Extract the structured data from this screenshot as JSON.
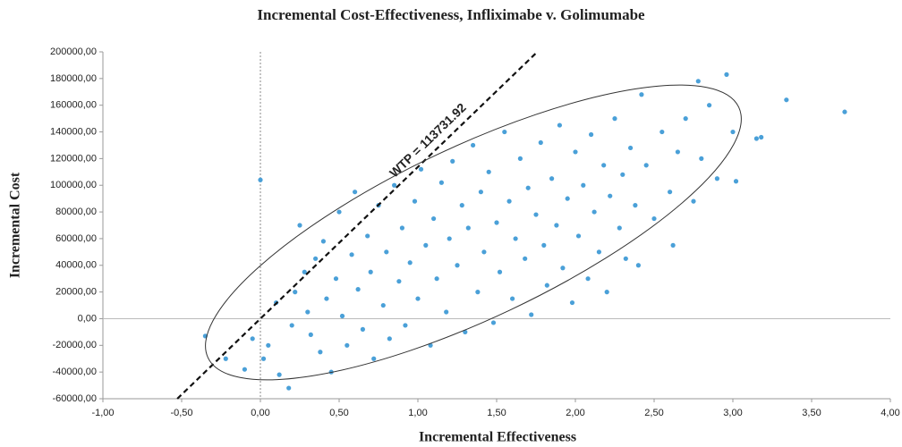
{
  "chart_data": {
    "type": "scatter",
    "title": "Incremental Cost-Effectiveness, Infliximabe v. Golimumabe",
    "x_label": "Incremental Effectiveness",
    "y_label": "Incremental Cost",
    "annotation": "WTP = 113731.92",
    "wtp": 113731.92,
    "color": "#4aa0d8",
    "xlim": [
      -1,
      4
    ],
    "ylim": [
      -60000,
      200000
    ],
    "xticks": [
      {
        "value": -1,
        "label": "-1,00"
      },
      {
        "value": -0.5,
        "label": "-0,50"
      },
      {
        "value": 0,
        "label": "0,00"
      },
      {
        "value": 0.5,
        "label": "0,50"
      },
      {
        "value": 1,
        "label": "1,00"
      },
      {
        "value": 1.5,
        "label": "1,50"
      },
      {
        "value": 2,
        "label": "2,00"
      },
      {
        "value": 2.5,
        "label": "2,50"
      },
      {
        "value": 3,
        "label": "3,00"
      },
      {
        "value": 3.5,
        "label": "3,50"
      },
      {
        "value": 4,
        "label": "4,00"
      }
    ],
    "yticks": [
      {
        "value": -60000,
        "label": "-60000,00"
      },
      {
        "value": -40000,
        "label": "-40000,00"
      },
      {
        "value": -20000,
        "label": "-20000,00"
      },
      {
        "value": 0,
        "label": "0,00"
      },
      {
        "value": 20000,
        "label": "20000,00"
      },
      {
        "value": 40000,
        "label": "40000,00"
      },
      {
        "value": 60000,
        "label": "60000,00"
      },
      {
        "value": 80000,
        "label": "80000,00"
      },
      {
        "value": 100000,
        "label": "100000,00"
      },
      {
        "value": 120000,
        "label": "120000,00"
      },
      {
        "value": 140000,
        "label": "140000,00"
      },
      {
        "value": 160000,
        "label": "160000,00"
      },
      {
        "value": 180000,
        "label": "180000,00"
      },
      {
        "value": 200000,
        "label": "200000,00"
      }
    ],
    "x": [
      -0.35,
      -0.22,
      -0.1,
      -0.05,
      0.0,
      0.02,
      0.05,
      0.1,
      0.12,
      0.18,
      0.2,
      0.22,
      0.25,
      0.28,
      0.3,
      0.32,
      0.35,
      0.38,
      0.4,
      0.42,
      0.45,
      0.48,
      0.5,
      0.52,
      0.55,
      0.58,
      0.6,
      0.62,
      0.65,
      0.68,
      0.7,
      0.72,
      0.75,
      0.78,
      0.8,
      0.82,
      0.85,
      0.88,
      0.9,
      0.92,
      0.95,
      0.98,
      1.0,
      1.02,
      1.05,
      1.08,
      1.1,
      1.12,
      1.15,
      1.18,
      1.2,
      1.22,
      1.25,
      1.28,
      1.3,
      1.32,
      1.35,
      1.38,
      1.4,
      1.42,
      1.45,
      1.48,
      1.5,
      1.52,
      1.55,
      1.58,
      1.6,
      1.62,
      1.65,
      1.68,
      1.7,
      1.72,
      1.75,
      1.78,
      1.8,
      1.82,
      1.85,
      1.88,
      1.9,
      1.92,
      1.95,
      1.98,
      2.0,
      2.02,
      2.05,
      2.08,
      2.1,
      2.12,
      2.15,
      2.18,
      2.2,
      2.22,
      2.25,
      2.28,
      2.3,
      2.32,
      2.35,
      2.38,
      2.4,
      2.42,
      2.45,
      2.5,
      2.55,
      2.6,
      2.62,
      2.65,
      2.7,
      2.75,
      2.78,
      2.8,
      2.85,
      2.9,
      2.96,
      3.0,
      3.02,
      3.15,
      3.18,
      3.34,
      3.71
    ],
    "values": [
      -13000,
      -30000,
      -38000,
      -15000,
      104000,
      -30000,
      -20000,
      12000,
      -42000,
      -52000,
      -5000,
      20000,
      70000,
      35000,
      5000,
      -12000,
      45000,
      -25000,
      58000,
      15000,
      -40000,
      30000,
      80000,
      2000,
      -20000,
      48000,
      95000,
      22000,
      -8000,
      62000,
      35000,
      -30000,
      85000,
      10000,
      50000,
      -15000,
      100000,
      28000,
      68000,
      -5000,
      42000,
      88000,
      15000,
      112000,
      55000,
      -20000,
      75000,
      30000,
      102000,
      5000,
      60000,
      118000,
      40000,
      85000,
      -10000,
      68000,
      130000,
      20000,
      95000,
      50000,
      110000,
      -3000,
      72000,
      35000,
      140000,
      88000,
      15000,
      60000,
      120000,
      45000,
      98000,
      3000,
      78000,
      132000,
      55000,
      25000,
      105000,
      70000,
      145000,
      38000,
      90000,
      12000,
      125000,
      62000,
      100000,
      30000,
      138000,
      80000,
      50000,
      115000,
      20000,
      92000,
      150000,
      68000,
      108000,
      45000,
      128000,
      85000,
      40000,
      168000,
      115000,
      75000,
      140000,
      95000,
      55000,
      125000,
      150000,
      88000,
      178000,
      120000,
      160000,
      105000,
      183000,
      140000,
      103000,
      135000,
      136000,
      164000,
      155000
    ]
  }
}
